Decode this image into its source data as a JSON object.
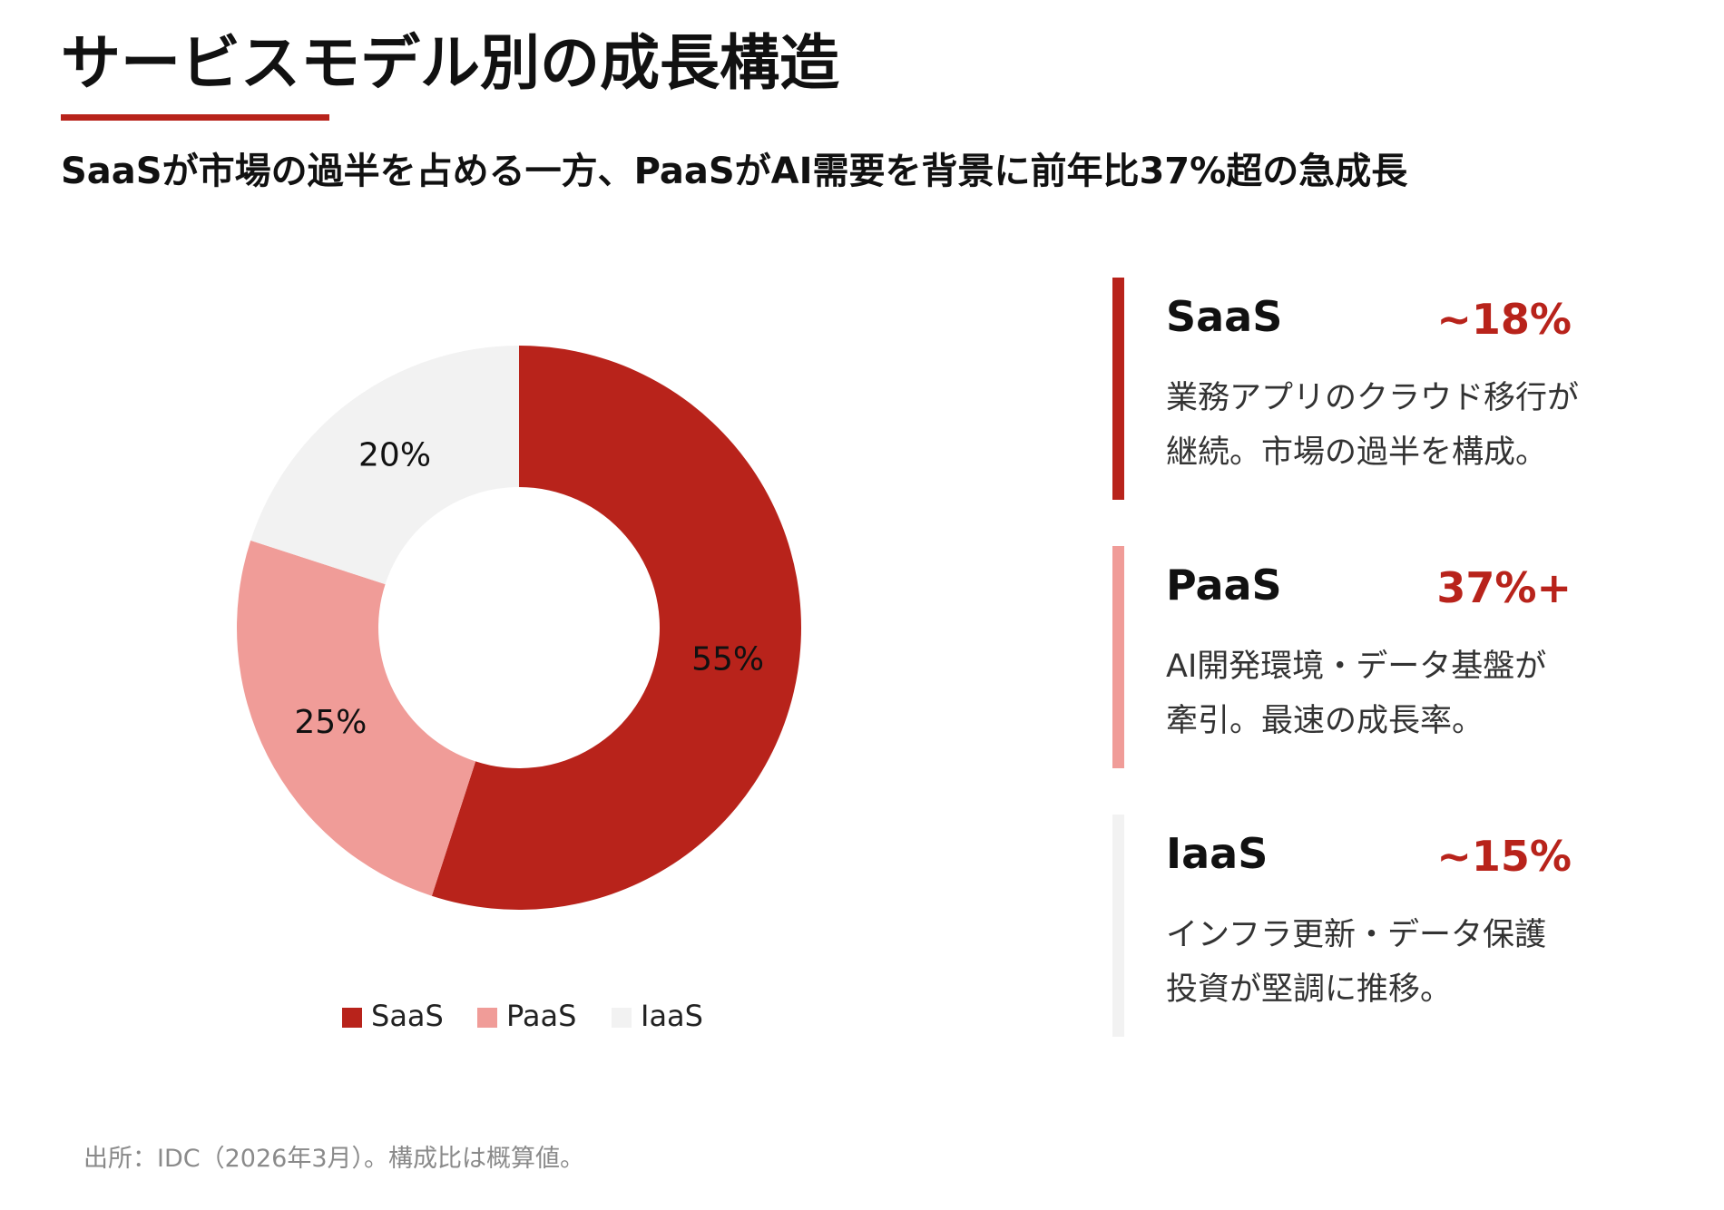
{
  "header": {
    "title": "サービスモデル別の成長構造",
    "subtitle": "SaaSが市場の過半を占める一方、PaaSがAI需要を背景に前年比37%超の急成長"
  },
  "chart_data": {
    "type": "pie",
    "donut": true,
    "categories": [
      "SaaS",
      "PaaS",
      "IaaS"
    ],
    "values": [
      55,
      25,
      20
    ],
    "value_labels": [
      "55%",
      "25%",
      "20%"
    ],
    "colors": [
      "#b8231b",
      "#f09c98",
      "#f2f2f2"
    ],
    "legend": "bottom"
  },
  "cards": [
    {
      "name": "SaaS",
      "growth": "~18%",
      "description": [
        "業務アプリのクラウド移行が",
        "継続。市場の過半を構成。"
      ]
    },
    {
      "name": "PaaS",
      "growth": "37%+",
      "description": [
        "AI開発環境・データ基盤が",
        "牽引。最速の成長率。"
      ]
    },
    {
      "name": "IaaS",
      "growth": "~15%",
      "description": [
        "インフラ更新・データ保護",
        "投資が堅調に推移。"
      ]
    }
  ],
  "footer": {
    "source": "出所：IDC（2026年3月）。構成比は概算値。"
  }
}
